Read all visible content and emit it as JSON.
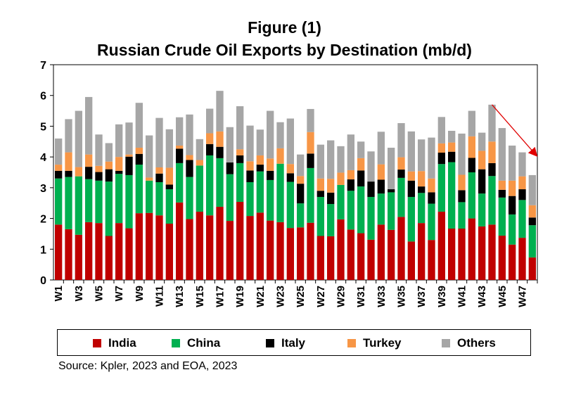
{
  "title_line1": "Figure (1)",
  "title_line2": "Russian Crude Oil Exports by Destination (mb/d)",
  "source": "Source: Kpler, 2023 and EOA, 2023",
  "chart_data": {
    "type": "bar",
    "stacked": true,
    "title": "Russian Crude Oil Exports by Destination (mb/d)",
    "xlabel": "",
    "ylabel": "",
    "ylim": [
      0,
      7
    ],
    "yticks": [
      0,
      1,
      2,
      3,
      4,
      5,
      6,
      7
    ],
    "grid": false,
    "legend": "bottom",
    "categories": [
      "W1",
      "W2",
      "W3",
      "W4",
      "W5",
      "W6",
      "W7",
      "W8",
      "W9",
      "W10",
      "W11",
      "W12",
      "W13",
      "W14",
      "W15",
      "W16",
      "W17",
      "W18",
      "W19",
      "W20",
      "W21",
      "W22",
      "W23",
      "W24",
      "W25",
      "W26",
      "W27",
      "W28",
      "W29",
      "W30",
      "W31",
      "W32",
      "W33",
      "W34",
      "W35",
      "W36",
      "W37",
      "W38",
      "W39",
      "W40",
      "W41",
      "W42",
      "W43",
      "W44",
      "W45",
      "W46",
      "W47",
      "W48"
    ],
    "x_tick_labels": [
      "W1",
      "W3",
      "W5",
      "W7",
      "W9",
      "W11",
      "W13",
      "W15",
      "W17",
      "W19",
      "W21",
      "W23",
      "W25",
      "W27",
      "W29",
      "W31",
      "W33",
      "W35",
      "W37",
      "W39",
      "W41",
      "W43",
      "W45",
      "W47"
    ],
    "series": [
      {
        "name": "India",
        "color": "#c00000",
        "values": [
          1.8,
          1.65,
          1.47,
          1.88,
          1.85,
          1.43,
          1.85,
          1.68,
          2.17,
          2.18,
          2.1,
          1.83,
          2.52,
          1.98,
          2.22,
          2.1,
          2.38,
          1.92,
          2.54,
          2.08,
          2.19,
          1.93,
          1.88,
          1.69,
          1.71,
          1.86,
          1.43,
          1.42,
          1.97,
          1.64,
          1.52,
          1.31,
          1.8,
          1.63,
          2.05,
          1.25,
          1.85,
          1.3,
          2.22,
          1.67,
          1.67,
          2.0,
          1.74,
          1.8,
          1.44,
          1.15,
          1.37,
          0.73
        ]
      },
      {
        "name": "China",
        "color": "#00b050",
        "values": [
          1.5,
          1.7,
          1.9,
          1.4,
          1.38,
          1.77,
          1.6,
          1.73,
          1.58,
          1.05,
          1.08,
          1.12,
          1.28,
          1.37,
          1.5,
          1.95,
          1.58,
          1.52,
          1.26,
          1.1,
          1.34,
          1.32,
          1.9,
          1.5,
          0.78,
          1.78,
          1.27,
          1.05,
          1.12,
          1.26,
          1.52,
          1.39,
          1.01,
          1.22,
          1.27,
          1.45,
          0.98,
          1.18,
          1.55,
          2.16,
          0.86,
          1.5,
          1.07,
          1.58,
          1.24,
          0.98,
          1.23,
          1.05
        ]
      },
      {
        "name": "Italy",
        "color": "#000000",
        "values": [
          0.25,
          0.2,
          0.0,
          0.4,
          0.28,
          0.4,
          0.1,
          0.6,
          0.35,
          0.0,
          0.28,
          0.15,
          0.47,
          0.55,
          0.0,
          0.37,
          0.37,
          0.38,
          0.25,
          0.38,
          0.22,
          0.3,
          0.0,
          0.28,
          0.64,
          0.47,
          0.2,
          0.37,
          0.0,
          0.37,
          0.52,
          0.5,
          0.45,
          0.1,
          0.27,
          0.53,
          0.21,
          0.37,
          0.37,
          0.34,
          0.39,
          0.47,
          0.79,
          0.42,
          0.25,
          0.6,
          0.35,
          0.25
        ]
      },
      {
        "name": "Turkey",
        "color": "#f79646",
        "values": [
          0.2,
          0.6,
          0.3,
          0.4,
          0.2,
          0.25,
          0.45,
          0.07,
          0.2,
          0.1,
          0.2,
          0.55,
          0.1,
          0.16,
          0.18,
          0.35,
          0.5,
          0.0,
          0.2,
          0.3,
          0.3,
          0.4,
          0.5,
          0.3,
          0.25,
          0.7,
          0.4,
          0.45,
          0.4,
          0.3,
          0.4,
          0.0,
          0.5,
          0.0,
          0.4,
          0.3,
          0.5,
          0.45,
          0.3,
          0.3,
          0.5,
          0.7,
          0.6,
          0.7,
          0.3,
          0.5,
          0.42,
          0.4
        ]
      },
      {
        "name": "Others",
        "color": "#a6a6a6",
        "values": [
          0.85,
          1.08,
          1.83,
          1.87,
          1.02,
          0.6,
          1.06,
          1.04,
          1.46,
          1.37,
          1.61,
          1.25,
          0.92,
          1.32,
          0.68,
          0.8,
          1.32,
          1.15,
          1.4,
          1.16,
          0.84,
          1.55,
          0.85,
          1.48,
          0.7,
          0.75,
          1.1,
          1.25,
          0.86,
          1.16,
          0.54,
          0.98,
          1.06,
          1.35,
          1.11,
          1.3,
          1.03,
          1.33,
          0.86,
          0.38,
          1.34,
          0.83,
          0.59,
          1.2,
          1.71,
          1.14,
          0.78,
          0.98
        ]
      }
    ],
    "annotation": {
      "type": "arrow",
      "color": "#e00000",
      "from_category": "W44",
      "from_value": 5.7,
      "to_category": "W48",
      "to_value": 4.05
    }
  }
}
